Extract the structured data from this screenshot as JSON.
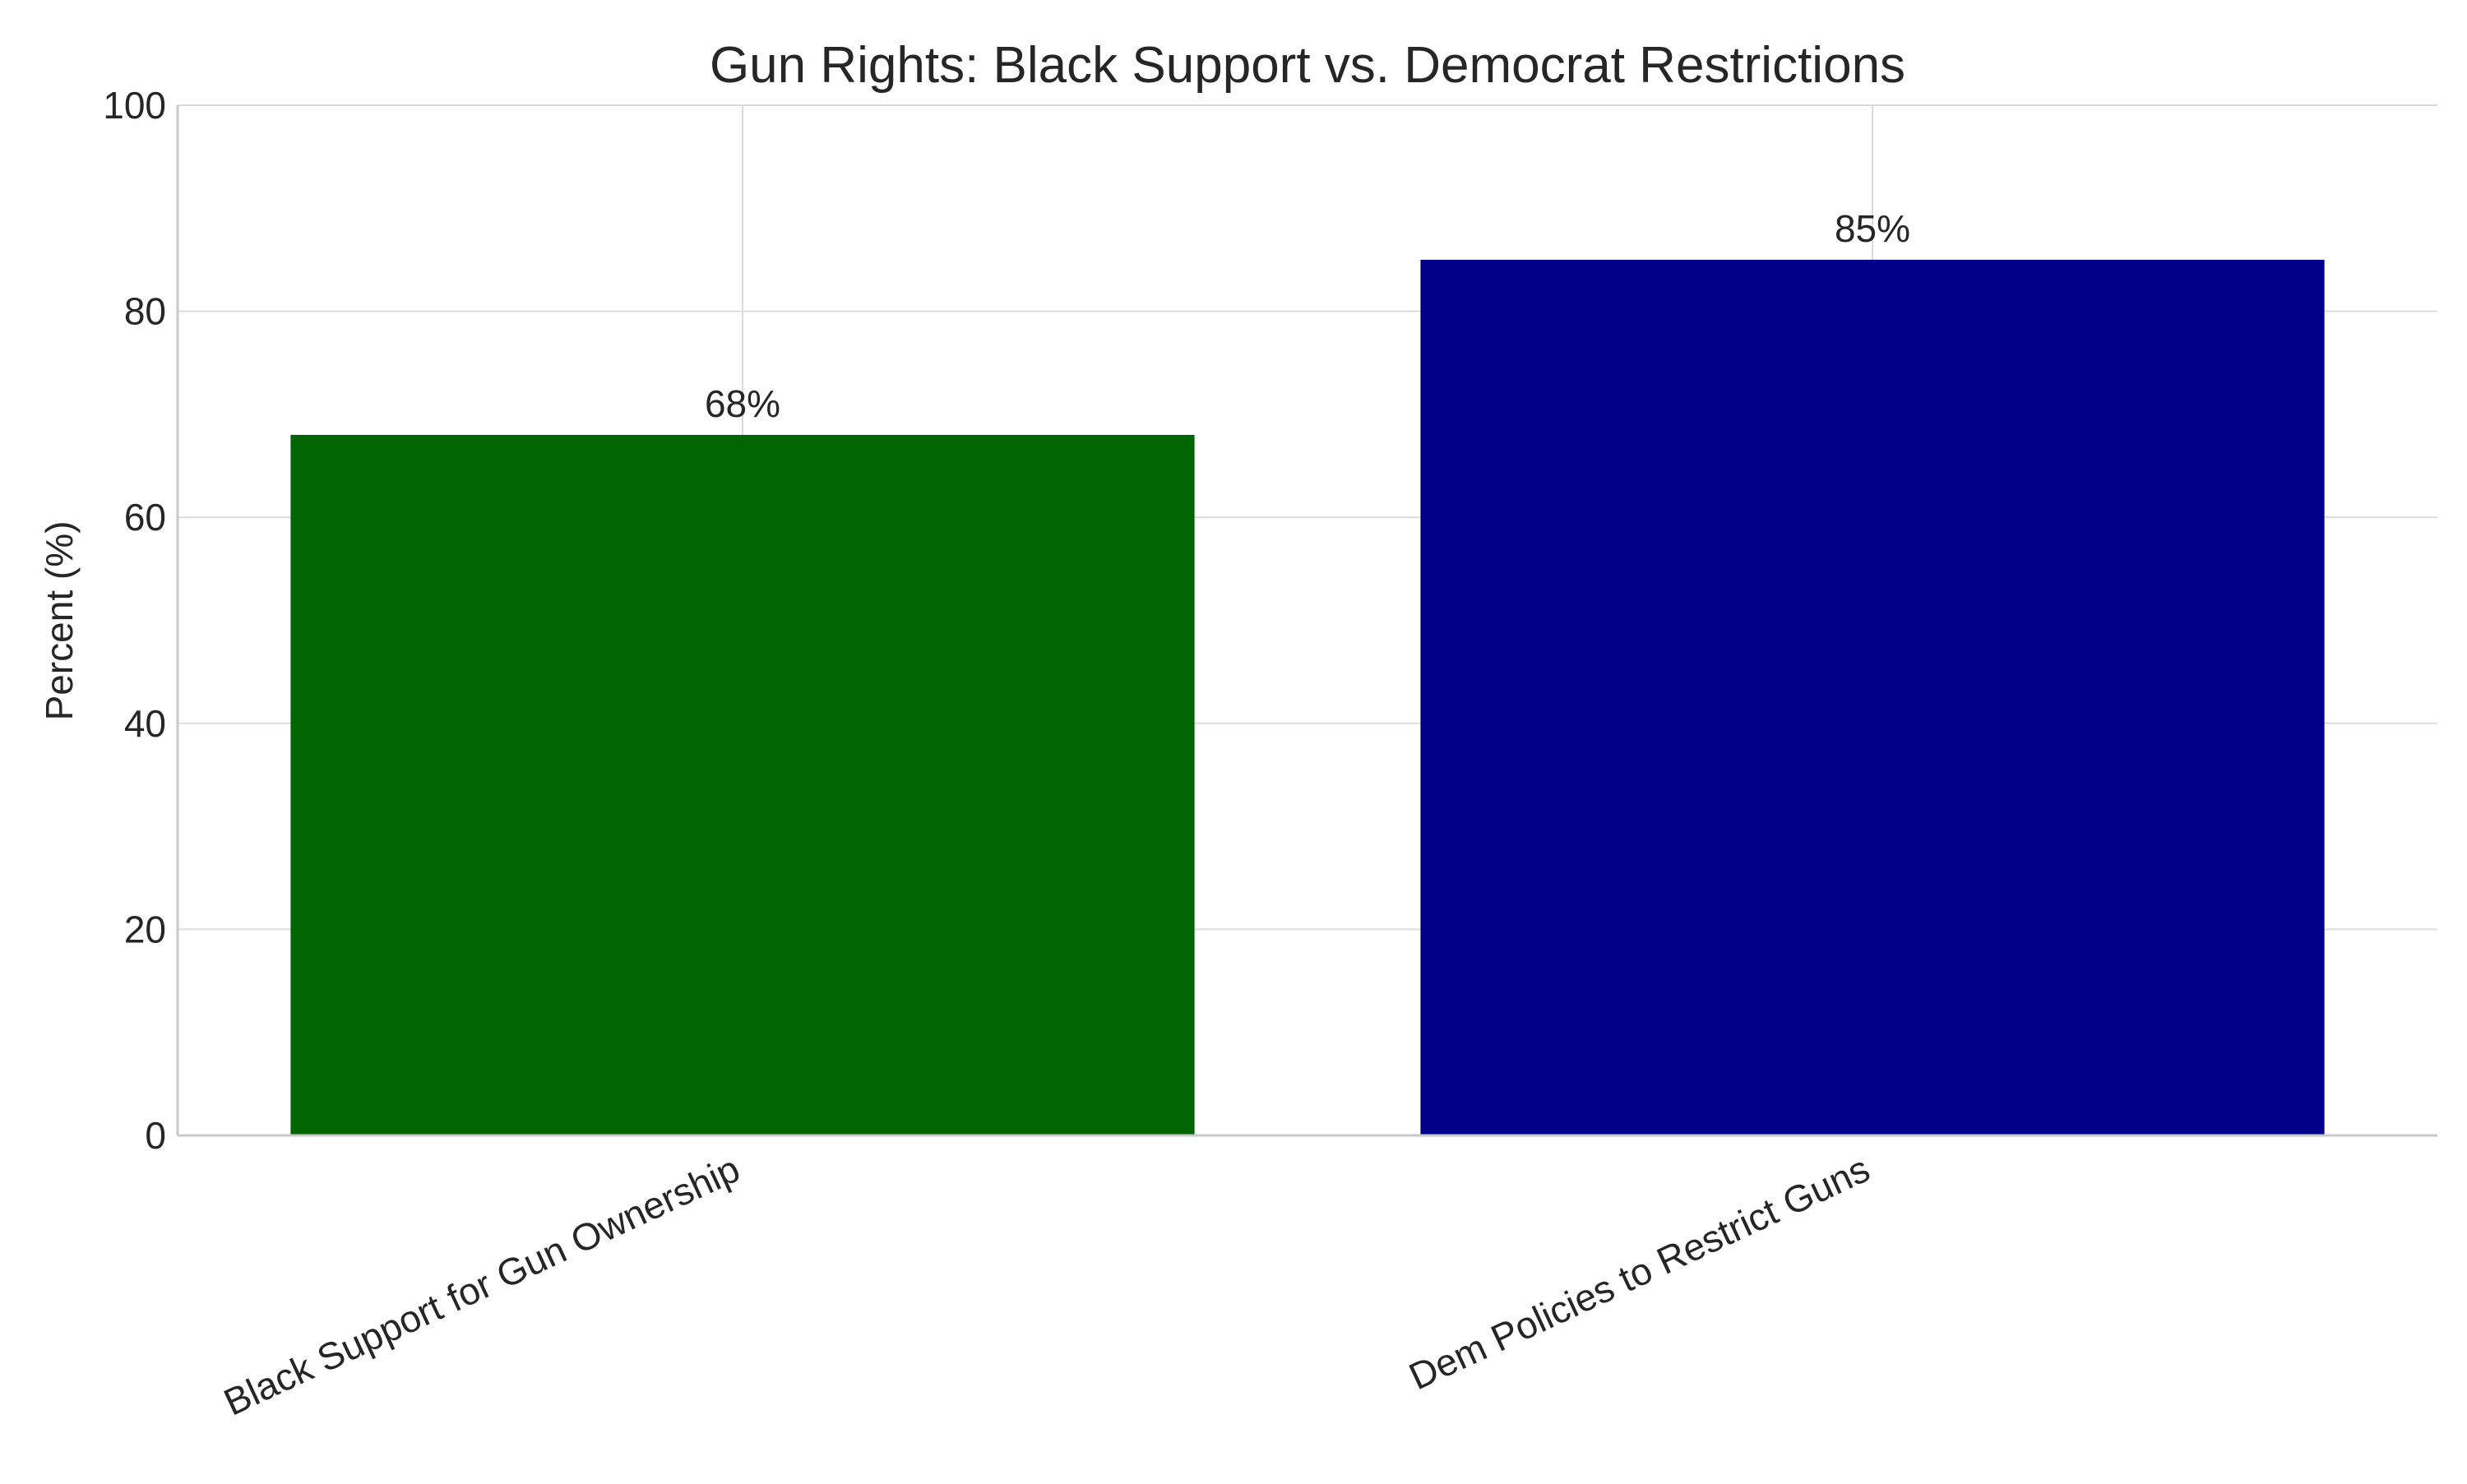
{
  "chart_data": {
    "type": "bar",
    "title": "Gun Rights: Black Support vs. Democrat Restrictions",
    "xlabel": "",
    "ylabel": "Percent (%)",
    "categories": [
      "Black Support for Gun Ownership",
      "Dem Policies to Restrict Guns"
    ],
    "values": [
      68,
      85
    ],
    "value_labels": [
      "68%",
      "85%"
    ],
    "colors": [
      "#006400",
      "#00008b"
    ],
    "ylim": [
      0,
      100
    ],
    "yticks": [
      0,
      20,
      40,
      60,
      80,
      100
    ],
    "ytick_labels": [
      "0",
      "20",
      "40",
      "60",
      "80",
      "100"
    ],
    "grid": true,
    "category_label_rotation": "angled"
  }
}
